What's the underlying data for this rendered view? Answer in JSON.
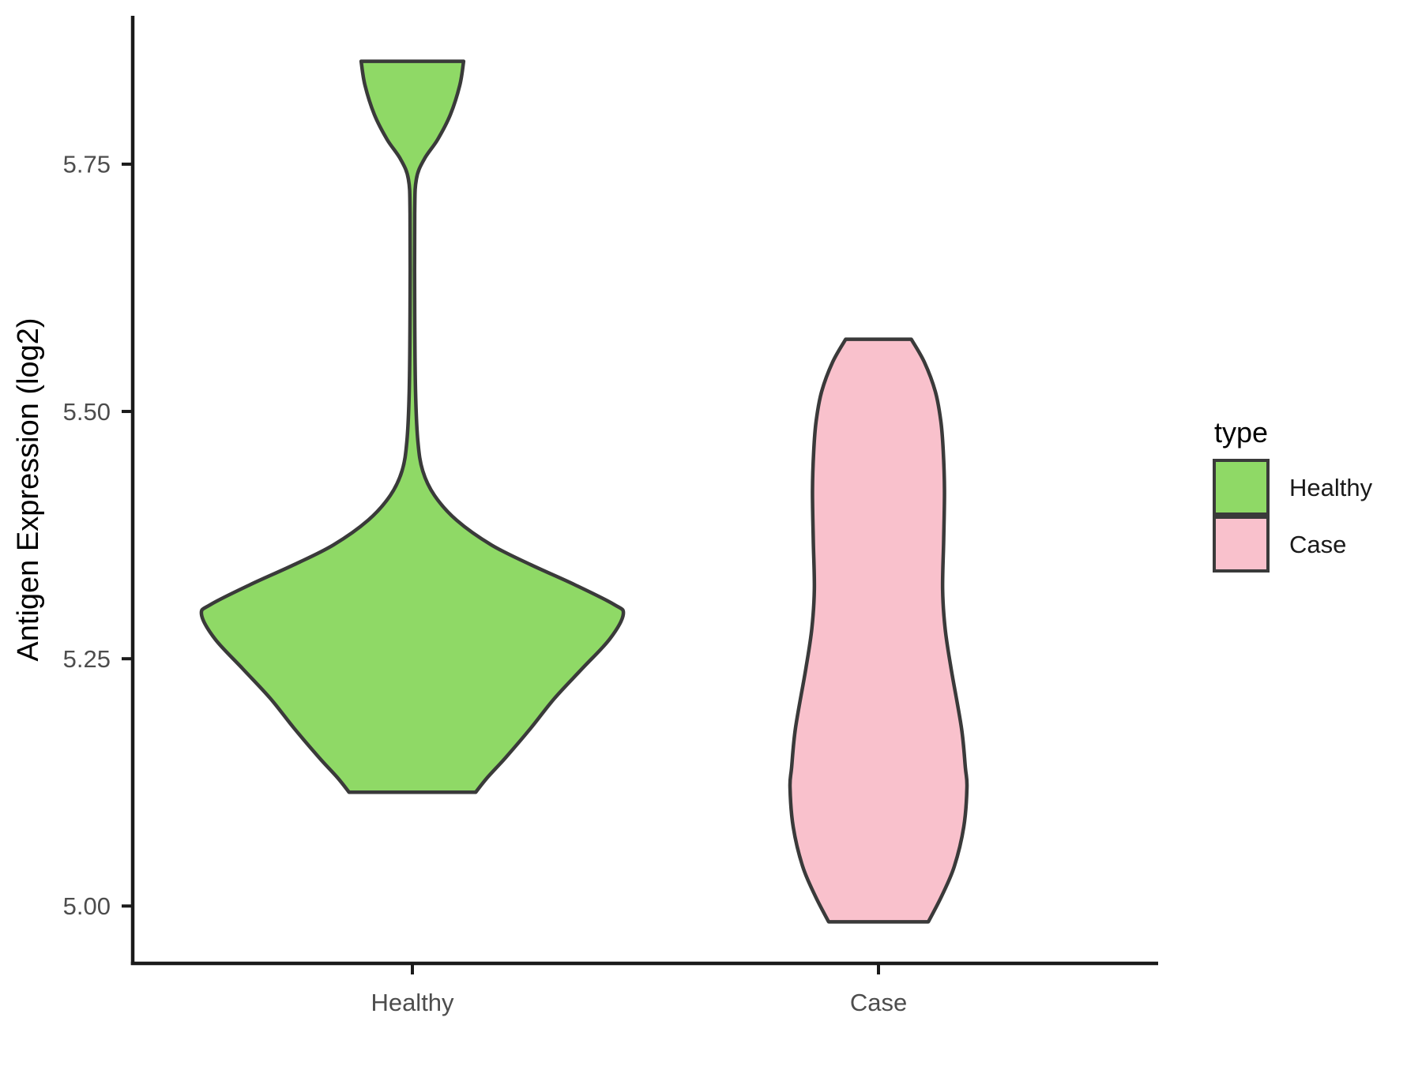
{
  "figure": {
    "background": "#FFFFFF",
    "y_axis": {
      "title": "Antigen Expression (log2)",
      "tick_labels": [
        "5.00",
        "5.25",
        "5.50",
        "5.75"
      ],
      "tick_values": [
        5.0,
        5.25,
        5.5,
        5.75
      ]
    },
    "x_axis": {
      "categories": [
        "Healthy",
        "Case"
      ]
    },
    "legend": {
      "title": "type",
      "entries": [
        {
          "label": "Healthy",
          "color": "#8FD966"
        },
        {
          "label": "Case",
          "color": "#F9C1CC"
        }
      ]
    },
    "colors": {
      "violin_stroke": "#3A3A3A",
      "axis_line": "#1A1A1A",
      "tick_text": "#4D4D4D",
      "title_text": "#000000"
    }
  },
  "chart_data": {
    "type": "violin",
    "title": "",
    "xlabel": "",
    "ylabel": "Antigen Expression (log2)",
    "categories": [
      "Healthy",
      "Case"
    ],
    "ylim": [
      4.942,
      5.9
    ],
    "y_ticks": [
      5.0,
      5.25,
      5.5,
      5.75
    ],
    "grid": false,
    "legend_position": "right",
    "legend_title": "type",
    "series": [
      {
        "name": "Healthy",
        "fill": "#8FD966",
        "max_halfwidth_frac": 0.4525,
        "value_range": [
          5.115,
          5.854
        ],
        "profile": [
          [
            5.854,
            0.243
          ],
          [
            5.83,
            0.225
          ],
          [
            5.8,
            0.18
          ],
          [
            5.775,
            0.12
          ],
          [
            5.755,
            0.056
          ],
          [
            5.735,
            0.019
          ],
          [
            5.7,
            0.011
          ],
          [
            5.6,
            0.011
          ],
          [
            5.52,
            0.015
          ],
          [
            5.47,
            0.026
          ],
          [
            5.44,
            0.049
          ],
          [
            5.415,
            0.105
          ],
          [
            5.39,
            0.21
          ],
          [
            5.365,
            0.375
          ],
          [
            5.345,
            0.562
          ],
          [
            5.325,
            0.768
          ],
          [
            5.305,
            0.955
          ],
          [
            5.295,
            1.0
          ],
          [
            5.27,
            0.936
          ],
          [
            5.24,
            0.805
          ],
          [
            5.21,
            0.674
          ],
          [
            5.18,
            0.562
          ],
          [
            5.15,
            0.442
          ],
          [
            5.13,
            0.356
          ],
          [
            5.115,
            0.3
          ]
        ]
      },
      {
        "name": "Case",
        "fill": "#F9C1CC",
        "max_halfwidth_frac": 0.1898,
        "value_range": [
          4.984,
          5.573
        ],
        "profile": [
          [
            5.573,
            0.371
          ],
          [
            5.55,
            0.518
          ],
          [
            5.52,
            0.643
          ],
          [
            5.49,
            0.705
          ],
          [
            5.46,
            0.732
          ],
          [
            5.42,
            0.746
          ],
          [
            5.37,
            0.737
          ],
          [
            5.32,
            0.725
          ],
          [
            5.28,
            0.754
          ],
          [
            5.24,
            0.821
          ],
          [
            5.18,
            0.938
          ],
          [
            5.14,
            0.982
          ],
          [
            5.12,
            1.0
          ],
          [
            5.08,
            0.964
          ],
          [
            5.04,
            0.857
          ],
          [
            5.01,
            0.714
          ],
          [
            4.984,
            0.563
          ]
        ]
      }
    ]
  }
}
